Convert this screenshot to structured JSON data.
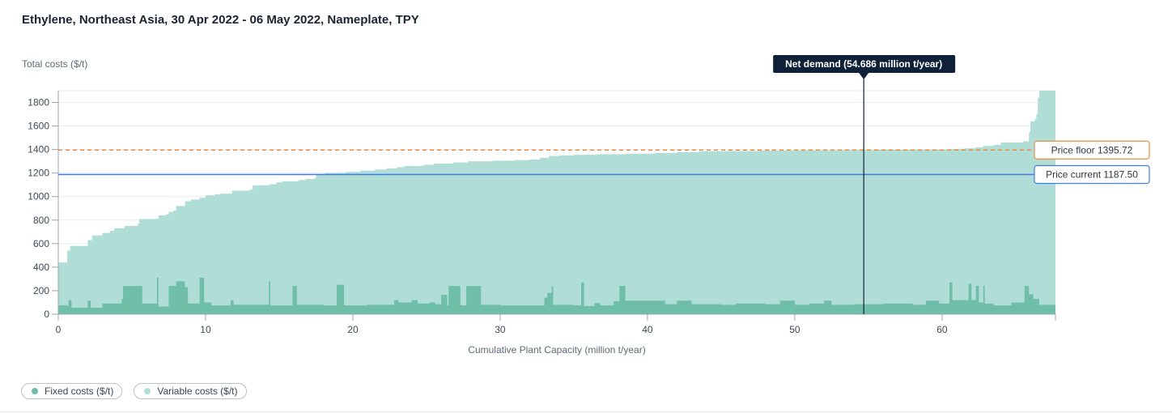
{
  "title": "Ethylene, Northeast Asia, 30 Apr 2022 - 06 May 2022, Nameplate, TPY",
  "legend": {
    "fixed_label": "Fixed costs ($/t)",
    "variable_label": "Variable costs ($/t)"
  },
  "colors": {
    "variable": "#b1ddd7",
    "fixed": "#6fbfa8",
    "price_floor": "#ed8a3e",
    "price_current": "#3f7be3",
    "net_demand": "#0f2138",
    "grid": "#e8ecef",
    "axis": "#9aa5af"
  },
  "chart_data": {
    "type": "area",
    "title": "Ethylene, Northeast Asia, 30 Apr 2022 - 06 May 2022, Nameplate, TPY",
    "xlabel": "Cumulative Plant Capacity (million t/year)",
    "ylabel": "Total costs ($/t)",
    "xlim": [
      0,
      67.7
    ],
    "ylim": [
      0,
      1900
    ],
    "x_ticks": [
      0,
      10,
      20,
      30,
      40,
      50,
      60
    ],
    "y_ticks": [
      0,
      200,
      400,
      600,
      800,
      1000,
      1200,
      1400,
      1600,
      1800
    ],
    "grid": true,
    "legend_position": "bottom-left",
    "total_cost_steps": [
      [
        0,
        440
      ],
      [
        0.6,
        540
      ],
      [
        0.8,
        580
      ],
      [
        2.0,
        630
      ],
      [
        2.3,
        670
      ],
      [
        3.0,
        690
      ],
      [
        3.5,
        710
      ],
      [
        3.8,
        730
      ],
      [
        4.5,
        750
      ],
      [
        5.4,
        770
      ],
      [
        5.5,
        810
      ],
      [
        6.8,
        840
      ],
      [
        7.3,
        850
      ],
      [
        7.5,
        870
      ],
      [
        7.8,
        880
      ],
      [
        8.0,
        920
      ],
      [
        8.6,
        960
      ],
      [
        9.0,
        975
      ],
      [
        9.6,
        990
      ],
      [
        10.0,
        1010
      ],
      [
        10.6,
        1020
      ],
      [
        11.0,
        1025
      ],
      [
        11.8,
        1050
      ],
      [
        13.0,
        1060
      ],
      [
        13.2,
        1095
      ],
      [
        14.3,
        1105
      ],
      [
        14.8,
        1120
      ],
      [
        15.2,
        1130
      ],
      [
        16.3,
        1140
      ],
      [
        16.8,
        1150
      ],
      [
        17.4,
        1160
      ],
      [
        17.5,
        1190
      ],
      [
        18.1,
        1200
      ],
      [
        19.5,
        1210
      ],
      [
        20.5,
        1220
      ],
      [
        21.5,
        1230
      ],
      [
        22.3,
        1240
      ],
      [
        23.0,
        1250
      ],
      [
        23.5,
        1260
      ],
      [
        24.8,
        1270
      ],
      [
        25.5,
        1280
      ],
      [
        26.8,
        1290
      ],
      [
        27.8,
        1300
      ],
      [
        29.5,
        1305
      ],
      [
        31.0,
        1310
      ],
      [
        32.0,
        1315
      ],
      [
        32.7,
        1330
      ],
      [
        33.3,
        1345
      ],
      [
        34.0,
        1350
      ],
      [
        35.0,
        1355
      ],
      [
        36.5,
        1360
      ],
      [
        38.5,
        1365
      ],
      [
        40.5,
        1370
      ],
      [
        42.0,
        1378
      ],
      [
        43.5,
        1385
      ],
      [
        45.5,
        1388
      ],
      [
        47.5,
        1392
      ],
      [
        50.0,
        1394
      ],
      [
        53.0,
        1396
      ],
      [
        55.5,
        1398
      ],
      [
        58.0,
        1400
      ],
      [
        60.5,
        1405
      ],
      [
        61.5,
        1410
      ],
      [
        62.3,
        1420
      ],
      [
        62.8,
        1430
      ],
      [
        63.5,
        1440
      ],
      [
        64.0,
        1460
      ],
      [
        65.5,
        1470
      ],
      [
        65.9,
        1550
      ],
      [
        66.0,
        1640
      ],
      [
        66.3,
        1660
      ],
      [
        66.4,
        1700
      ],
      [
        66.5,
        1840
      ],
      [
        66.6,
        1900
      ],
      [
        67.7,
        1900
      ]
    ],
    "fixed_cost_steps": [
      [
        0,
        75
      ],
      [
        0.6,
        70
      ],
      [
        0.7,
        120
      ],
      [
        0.9,
        55
      ],
      [
        2.0,
        115
      ],
      [
        2.2,
        55
      ],
      [
        3.0,
        90
      ],
      [
        4.3,
        130
      ],
      [
        4.4,
        240
      ],
      [
        5.7,
        90
      ],
      [
        6.7,
        310
      ],
      [
        6.8,
        65
      ],
      [
        7.5,
        240
      ],
      [
        8.0,
        280
      ],
      [
        8.6,
        230
      ],
      [
        8.8,
        90
      ],
      [
        9.6,
        310
      ],
      [
        9.9,
        100
      ],
      [
        10.4,
        75
      ],
      [
        11.7,
        120
      ],
      [
        11.9,
        80
      ],
      [
        14.3,
        280
      ],
      [
        14.4,
        75
      ],
      [
        15.9,
        240
      ],
      [
        16.2,
        80
      ],
      [
        18.0,
        75
      ],
      [
        18.9,
        250
      ],
      [
        19.4,
        75
      ],
      [
        21.0,
        80
      ],
      [
        22.8,
        120
      ],
      [
        23.1,
        100
      ],
      [
        24.0,
        120
      ],
      [
        24.4,
        90
      ],
      [
        25.2,
        100
      ],
      [
        25.6,
        85
      ],
      [
        26.0,
        165
      ],
      [
        26.4,
        75
      ],
      [
        26.5,
        240
      ],
      [
        27.3,
        75
      ],
      [
        27.7,
        240
      ],
      [
        28.7,
        80
      ],
      [
        30.0,
        75
      ],
      [
        33.0,
        140
      ],
      [
        33.2,
        180
      ],
      [
        33.5,
        240
      ],
      [
        33.6,
        80
      ],
      [
        35.0,
        75
      ],
      [
        35.5,
        270
      ],
      [
        35.7,
        70
      ],
      [
        36.4,
        95
      ],
      [
        36.8,
        75
      ],
      [
        37.7,
        110
      ],
      [
        38.1,
        240
      ],
      [
        38.5,
        115
      ],
      [
        40.0,
        115
      ],
      [
        41.2,
        85
      ],
      [
        42.0,
        115
      ],
      [
        43.0,
        85
      ],
      [
        45.0,
        80
      ],
      [
        46.0,
        90
      ],
      [
        48.0,
        85
      ],
      [
        49.0,
        115
      ],
      [
        50.0,
        80
      ],
      [
        51.0,
        90
      ],
      [
        52.0,
        115
      ],
      [
        52.5,
        80
      ],
      [
        54.0,
        85
      ],
      [
        56.0,
        90
      ],
      [
        58.0,
        80
      ],
      [
        58.9,
        115
      ],
      [
        59.8,
        90
      ],
      [
        60.5,
        270
      ],
      [
        60.7,
        120
      ],
      [
        61.8,
        260
      ],
      [
        62.0,
        120
      ],
      [
        62.3,
        240
      ],
      [
        62.5,
        100
      ],
      [
        62.8,
        240
      ],
      [
        62.9,
        90
      ],
      [
        63.5,
        75
      ],
      [
        64.7,
        100
      ],
      [
        65.6,
        240
      ],
      [
        65.9,
        170
      ],
      [
        66.2,
        130
      ],
      [
        66.6,
        80
      ],
      [
        67.7,
        80
      ]
    ],
    "price_floor": {
      "label": "Price floor",
      "value": 1395.72,
      "display": "1395.72"
    },
    "price_current": {
      "label": "Price current",
      "value": 1187.5,
      "display": "1187.50"
    },
    "net_demand": {
      "label": "Net demand (54.686 million t/year)",
      "value": 54.686
    }
  }
}
